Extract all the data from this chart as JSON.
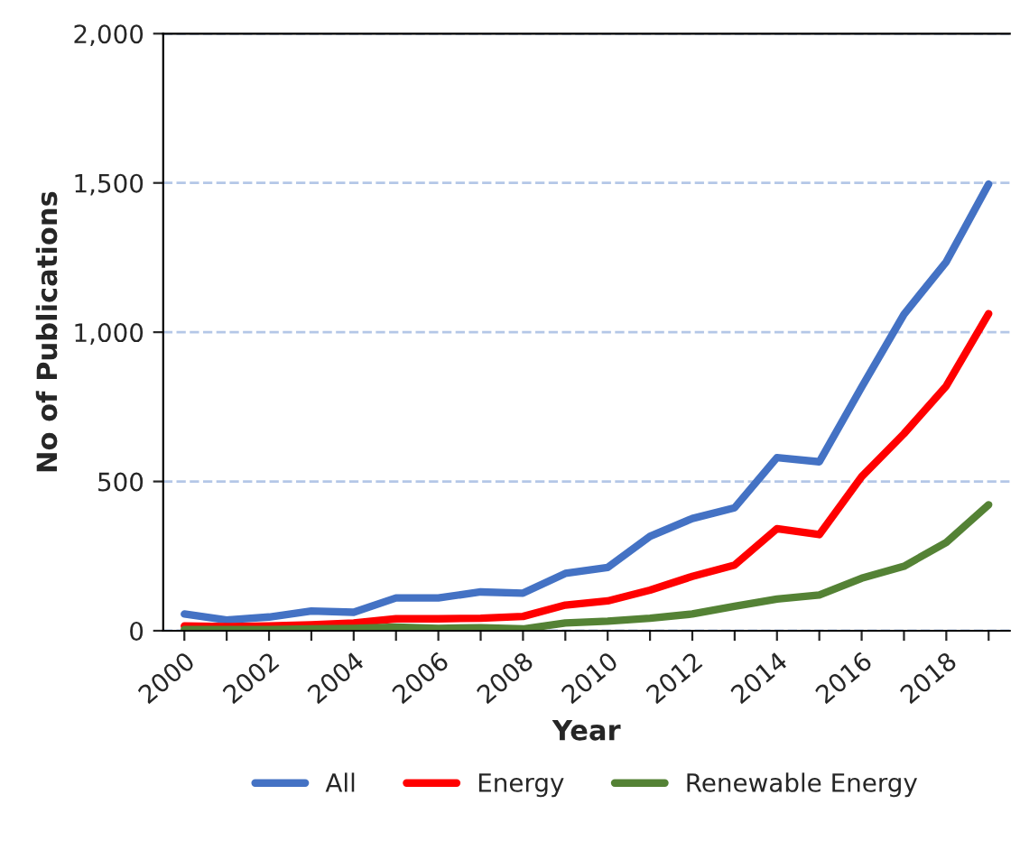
{
  "chart_data": {
    "type": "line",
    "xlabel": "Year",
    "ylabel": "No of Publications",
    "categories": [
      "2000",
      null,
      "2002",
      null,
      "2004",
      null,
      "2006",
      null,
      "2008",
      null,
      "2010",
      null,
      "2012",
      null,
      "2014",
      null,
      "2016",
      null,
      "2018",
      null
    ],
    "series": [
      {
        "name": "All",
        "color": "#4472c4",
        "values": [
          56,
          36,
          46,
          66,
          62,
          110,
          110,
          130,
          126,
          192,
          212,
          316,
          376,
          412,
          580,
          566,
          816,
          1060,
          1236,
          1496
        ]
      },
      {
        "name": "Energy",
        "color": "#ff0000",
        "values": [
          16,
          14,
          16,
          20,
          26,
          40,
          40,
          42,
          48,
          86,
          100,
          136,
          182,
          220,
          342,
          322,
          516,
          660,
          820,
          1062
        ]
      },
      {
        "name": "Renewable Energy",
        "color": "#548235",
        "values": [
          4,
          4,
          4,
          6,
          8,
          12,
          8,
          10,
          6,
          26,
          32,
          42,
          56,
          82,
          106,
          120,
          176,
          216,
          296,
          422
        ]
      }
    ],
    "ylim": [
      0,
      2000
    ],
    "yticks": [
      {
        "value": 0,
        "label": "0"
      },
      {
        "value": 500,
        "label": "500"
      },
      {
        "value": 1000,
        "label": "1,000"
      },
      {
        "value": 1500,
        "label": "1,500"
      },
      {
        "value": 2000,
        "label": "2,000"
      }
    ],
    "grid": "y",
    "legend": "bottom",
    "marker": "none",
    "line_style": "solid"
  }
}
